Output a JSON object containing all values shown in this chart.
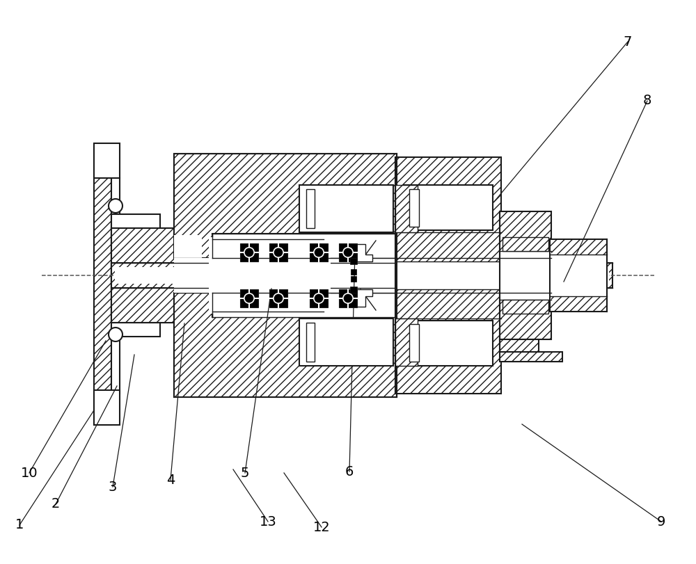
{
  "bg_color": "#ffffff",
  "line_color": "#1a1a1a",
  "label_color": "#000000",
  "figsize": [
    10.0,
    8.11
  ],
  "dpi": 100,
  "labels_info": [
    [
      "1",
      28,
      755,
      135,
      590
    ],
    [
      "2",
      80,
      725,
      168,
      555
    ],
    [
      "3",
      162,
      700,
      193,
      510
    ],
    [
      "4",
      245,
      690,
      265,
      465
    ],
    [
      "5",
      352,
      680,
      390,
      415
    ],
    [
      "6",
      502,
      678,
      510,
      362
    ],
    [
      "7",
      902,
      60,
      710,
      290
    ],
    [
      "8",
      930,
      145,
      810,
      405
    ],
    [
      "9",
      950,
      750,
      750,
      610
    ],
    [
      "10",
      42,
      680,
      152,
      490
    ],
    [
      "12",
      462,
      758,
      408,
      680
    ],
    [
      "13",
      385,
      750,
      335,
      675
    ]
  ]
}
